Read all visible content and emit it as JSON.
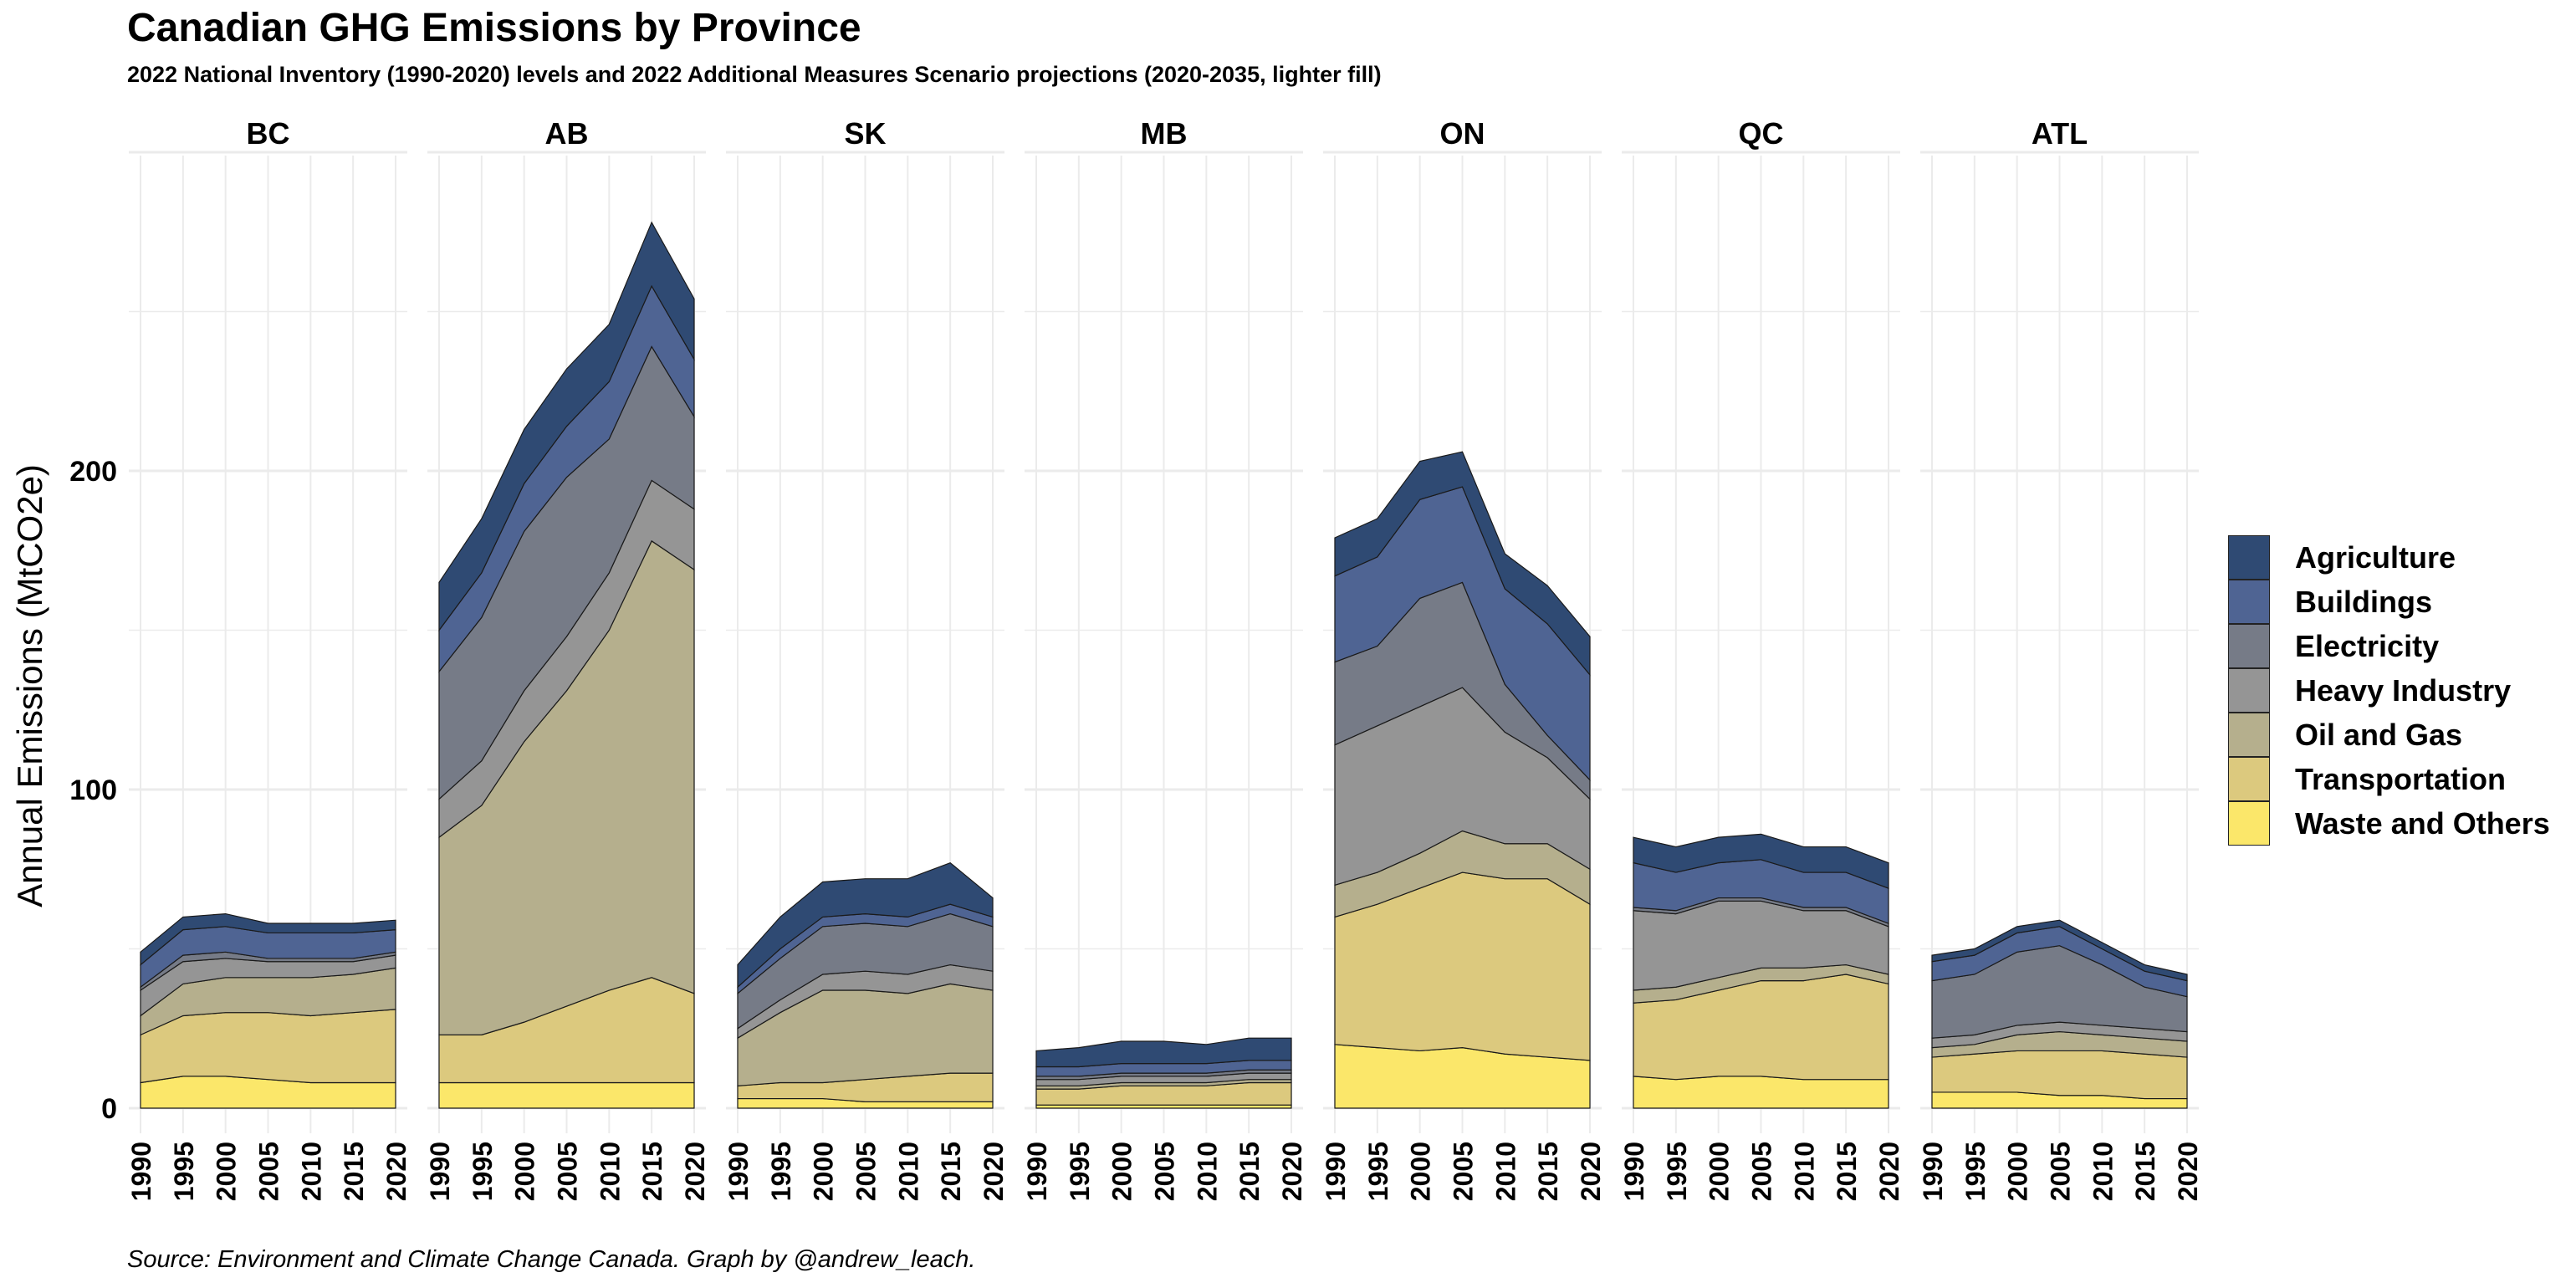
{
  "title": "Canadian GHG Emissions by Province",
  "subtitle": "2022 National Inventory (1990-2020) levels and 2022 Additional Measures Scenario projections (2020-2035, lighter fill)",
  "caption": "Source: Environment and Climate Change Canada. Graph by @andrew_leach.",
  "colors": {
    "Agriculture": "#2f4a73",
    "Buildings": "#4f6493",
    "Electricity": "#767b87",
    "Heavy Industry": "#959595",
    "Oil and Gas": "#b5af8d",
    "Transportation": "#dcc97e",
    "Waste and Others": "#fbe76a",
    "grid": "#ebebeb",
    "text": "#000000"
  },
  "chart_data": {
    "type": "area",
    "stacked": true,
    "faceted_by": "province",
    "ylabel": "Annual Emissions  (MtCO2e)",
    "ylim": [
      0,
      300
    ],
    "yticks": [
      0,
      100,
      200
    ],
    "xlim": [
      1990,
      2020
    ],
    "xticks": [
      1990,
      1995,
      2000,
      2005,
      2010,
      2015,
      2020
    ],
    "grid": true,
    "legend_position": "right",
    "stack_order_bottom_to_top": [
      "Waste and Others",
      "Transportation",
      "Oil and Gas",
      "Heavy Industry",
      "Electricity",
      "Buildings",
      "Agriculture"
    ],
    "legend": [
      "Agriculture",
      "Buildings",
      "Electricity",
      "Heavy Industry",
      "Oil and Gas",
      "Transportation",
      "Waste and Others"
    ],
    "x": [
      1990,
      1995,
      2000,
      2005,
      2010,
      2015,
      2020
    ],
    "panels": [
      {
        "name": "BC",
        "series": [
          {
            "name": "Waste and Others",
            "values": [
              8,
              10,
              10,
              9,
              8,
              8,
              8
            ]
          },
          {
            "name": "Transportation",
            "values": [
              15,
              19,
              20,
              21,
              21,
              22,
              23
            ]
          },
          {
            "name": "Oil and Gas",
            "values": [
              6,
              10,
              11,
              11,
              12,
              12,
              13
            ]
          },
          {
            "name": "Heavy Industry",
            "values": [
              8,
              7,
              6,
              5,
              5,
              4,
              4
            ]
          },
          {
            "name": "Electricity",
            "values": [
              1,
              2,
              2,
              1,
              1,
              1,
              1
            ]
          },
          {
            "name": "Buildings",
            "values": [
              7,
              8,
              8,
              8,
              8,
              8,
              7
            ]
          },
          {
            "name": "Agriculture",
            "values": [
              4,
              4,
              4,
              3,
              3,
              3,
              3
            ]
          }
        ]
      },
      {
        "name": "AB",
        "series": [
          {
            "name": "Waste and Others",
            "values": [
              8,
              8,
              8,
              8,
              8,
              8,
              8
            ]
          },
          {
            "name": "Transportation",
            "values": [
              15,
              15,
              19,
              24,
              29,
              33,
              28
            ]
          },
          {
            "name": "Oil and Gas",
            "values": [
              62,
              72,
              88,
              99,
              113,
              137,
              133
            ]
          },
          {
            "name": "Heavy Industry",
            "values": [
              12,
              14,
              16,
              17,
              18,
              19,
              19
            ]
          },
          {
            "name": "Electricity",
            "values": [
              40,
              45,
              50,
              50,
              42,
              42,
              29
            ]
          },
          {
            "name": "Buildings",
            "values": [
              13,
              14,
              15,
              16,
              18,
              19,
              18
            ]
          },
          {
            "name": "Agriculture",
            "values": [
              15,
              17,
              17,
              18,
              18,
              20,
              19
            ]
          }
        ]
      },
      {
        "name": "SK",
        "series": [
          {
            "name": "Waste and Others",
            "values": [
              3,
              3,
              3,
              2,
              2,
              2,
              2
            ]
          },
          {
            "name": "Transportation",
            "values": [
              4,
              5,
              5,
              7,
              8,
              9,
              9
            ]
          },
          {
            "name": "Oil and Gas",
            "values": [
              15,
              22,
              29,
              28,
              26,
              28,
              26
            ]
          },
          {
            "name": "Heavy Industry",
            "values": [
              3,
              4,
              5,
              6,
              6,
              6,
              6
            ]
          },
          {
            "name": "Electricity",
            "values": [
              11,
              13,
              15,
              15,
              15,
              16,
              14
            ]
          },
          {
            "name": "Buildings",
            "values": [
              2,
              3,
              3,
              3,
              3,
              3,
              3
            ]
          },
          {
            "name": "Agriculture",
            "values": [
              7,
              10,
              11,
              11,
              12,
              13,
              6
            ]
          }
        ]
      },
      {
        "name": "MB",
        "series": [
          {
            "name": "Waste and Others",
            "values": [
              1,
              1,
              1,
              1,
              1,
              1,
              1
            ]
          },
          {
            "name": "Transportation",
            "values": [
              5,
              5,
              6,
              6,
              6,
              7,
              7
            ]
          },
          {
            "name": "Oil and Gas",
            "values": [
              1,
              1,
              1,
              1,
              1,
              1,
              1
            ]
          },
          {
            "name": "Heavy Industry",
            "values": [
              2,
              2,
              2,
              2,
              2,
              2,
              2
            ]
          },
          {
            "name": "Electricity",
            "values": [
              1,
              1,
              1,
              1,
              1,
              1,
              1
            ]
          },
          {
            "name": "Buildings",
            "values": [
              3,
              3,
              3,
              3,
              3,
              3,
              3
            ]
          },
          {
            "name": "Agriculture",
            "values": [
              5,
              6,
              7,
              7,
              6,
              7,
              7
            ]
          }
        ]
      },
      {
        "name": "ON",
        "series": [
          {
            "name": "Waste and Others",
            "values": [
              20,
              19,
              18,
              19,
              17,
              16,
              15
            ]
          },
          {
            "name": "Transportation",
            "values": [
              40,
              45,
              51,
              55,
              55,
              56,
              49
            ]
          },
          {
            "name": "Oil and Gas",
            "values": [
              10,
              10,
              11,
              13,
              11,
              11,
              11
            ]
          },
          {
            "name": "Heavy Industry",
            "values": [
              44,
              46,
              46,
              45,
              35,
              27,
              22
            ]
          },
          {
            "name": "Electricity",
            "values": [
              26,
              25,
              34,
              33,
              15,
              7,
              6
            ]
          },
          {
            "name": "Buildings",
            "values": [
              27,
              28,
              31,
              30,
              30,
              35,
              33
            ]
          },
          {
            "name": "Agriculture",
            "values": [
              12,
              12,
              12,
              11,
              11,
              12,
              12
            ]
          }
        ]
      },
      {
        "name": "QC",
        "series": [
          {
            "name": "Waste and Others",
            "values": [
              10,
              9,
              10,
              10,
              9,
              9,
              9
            ]
          },
          {
            "name": "Transportation",
            "values": [
              23,
              25,
              27,
              30,
              31,
              33,
              30
            ]
          },
          {
            "name": "Oil and Gas",
            "values": [
              4,
              4,
              4,
              4,
              4,
              3,
              3
            ]
          },
          {
            "name": "Heavy Industry",
            "values": [
              25,
              23,
              24,
              21,
              18,
              17,
              15
            ]
          },
          {
            "name": "Electricity",
            "values": [
              1,
              1,
              1,
              1,
              1,
              1,
              1
            ]
          },
          {
            "name": "Buildings",
            "values": [
              14,
              12,
              11,
              12,
              11,
              11,
              11
            ]
          },
          {
            "name": "Agriculture",
            "values": [
              8,
              8,
              8,
              8,
              8,
              8,
              8
            ]
          }
        ]
      },
      {
        "name": "ATL",
        "series": [
          {
            "name": "Waste and Others",
            "values": [
              5,
              5,
              5,
              4,
              4,
              3,
              3
            ]
          },
          {
            "name": "Transportation",
            "values": [
              11,
              12,
              13,
              14,
              14,
              14,
              13
            ]
          },
          {
            "name": "Oil and Gas",
            "values": [
              3,
              3,
              5,
              6,
              5,
              5,
              5
            ]
          },
          {
            "name": "Heavy Industry",
            "values": [
              3,
              3,
              3,
              3,
              3,
              3,
              3
            ]
          },
          {
            "name": "Electricity",
            "values": [
              18,
              19,
              23,
              24,
              19,
              13,
              11
            ]
          },
          {
            "name": "Buildings",
            "values": [
              6,
              6,
              6,
              6,
              5,
              5,
              5
            ]
          },
          {
            "name": "Agriculture",
            "values": [
              2,
              2,
              2,
              2,
              2,
              2,
              2
            ]
          }
        ]
      }
    ]
  }
}
